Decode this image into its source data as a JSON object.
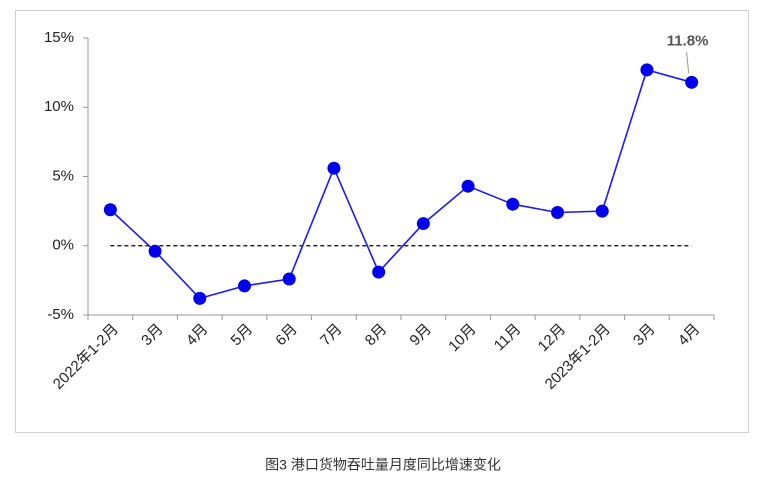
{
  "chart_data": {
    "type": "line",
    "caption": "图3 港口货物吞吐量月度同比增速变化",
    "categories": [
      "2022年1-2月",
      "3月",
      "4月",
      "5月",
      "6月",
      "7月",
      "8月",
      "9月",
      "10月",
      "11月",
      "12月",
      "2023年1-2月",
      "3月",
      "4月"
    ],
    "series": [
      {
        "color": "#1a1aff",
        "values": [
          2.6,
          -0.4,
          -3.8,
          -2.9,
          -2.4,
          5.6,
          -1.9,
          1.6,
          4.3,
          3.0,
          2.4,
          2.5,
          12.7,
          11.8
        ],
        "value_labels": [
          null,
          null,
          null,
          null,
          null,
          null,
          null,
          null,
          null,
          null,
          null,
          null,
          null,
          "11.8%"
        ]
      }
    ],
    "ylim": [
      -5,
      15
    ],
    "yticks": [
      {
        "value": -5,
        "label": "-5%"
      },
      {
        "value": 0,
        "label": "0%"
      },
      {
        "value": 5,
        "label": "5%"
      },
      {
        "value": 10,
        "label": "10%"
      },
      {
        "value": 15,
        "label": "15%"
      }
    ],
    "zero_line_dashed": true
  }
}
